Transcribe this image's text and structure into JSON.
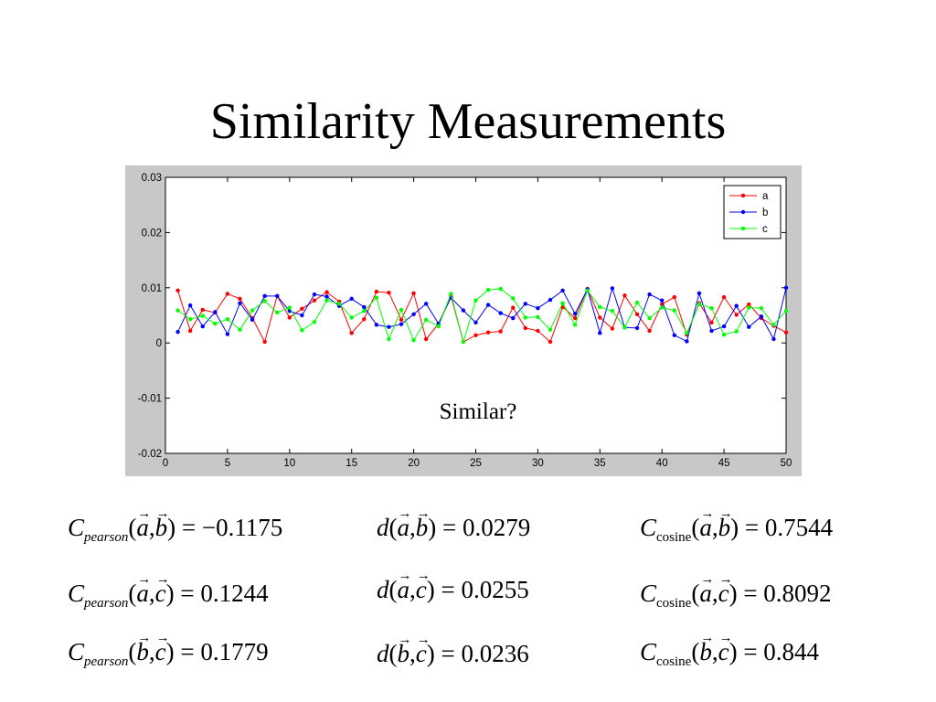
{
  "slide": {
    "title": "Similarity Measurements"
  },
  "chart_data": {
    "type": "line",
    "xlim": [
      0,
      50
    ],
    "ylim": [
      -0.02,
      0.03
    ],
    "xticks": [
      "0",
      "5",
      "10",
      "15",
      "20",
      "25",
      "30",
      "35",
      "40",
      "45",
      "50"
    ],
    "yticks": [
      "0.03",
      "0.02",
      "0.01",
      "0",
      "-0.01",
      "-0.02"
    ],
    "legend_position": "top-right",
    "grid": false,
    "annotation": "Similar?",
    "x": [
      1,
      2,
      3,
      4,
      5,
      6,
      7,
      8,
      9,
      10,
      11,
      12,
      13,
      14,
      15,
      16,
      17,
      18,
      19,
      20,
      21,
      22,
      23,
      24,
      25,
      26,
      27,
      28,
      29,
      30,
      31,
      32,
      33,
      34,
      35,
      36,
      37,
      38,
      39,
      40,
      41,
      42,
      43,
      44,
      45,
      46,
      47,
      48,
      49,
      50
    ],
    "series": [
      {
        "name": "a",
        "color": "#ff0000",
        "values": [
          0.0095,
          0.0022,
          0.006,
          0.0055,
          0.0089,
          0.008,
          0.0045,
          0.0002,
          0.0085,
          0.0046,
          0.0062,
          0.0077,
          0.0092,
          0.0075,
          0.0018,
          0.0043,
          0.0093,
          0.0091,
          0.0042,
          0.009,
          0.0007,
          0.0035,
          0.0085,
          0.0002,
          0.0014,
          0.0019,
          0.0021,
          0.0064,
          0.0027,
          0.0022,
          0.0002,
          0.0065,
          0.0045,
          0.0098,
          0.0046,
          0.0026,
          0.0086,
          0.0052,
          0.0022,
          0.007,
          0.0083,
          0.0015,
          0.0072,
          0.0037,
          0.0083,
          0.0051,
          0.007,
          0.0045,
          0.0031,
          0.0019
        ]
      },
      {
        "name": "b",
        "color": "#0000ff",
        "values": [
          0.002,
          0.0068,
          0.003,
          0.0056,
          0.0016,
          0.0072,
          0.0042,
          0.0085,
          0.0085,
          0.0058,
          0.005,
          0.0088,
          0.0084,
          0.0067,
          0.008,
          0.0065,
          0.0033,
          0.0029,
          0.0034,
          0.0052,
          0.0071,
          0.0035,
          0.0082,
          0.0059,
          0.0037,
          0.0069,
          0.0054,
          0.0045,
          0.0071,
          0.0063,
          0.0078,
          0.0095,
          0.0053,
          0.0097,
          0.0018,
          0.0099,
          0.0028,
          0.0027,
          0.0088,
          0.0077,
          0.0014,
          0.0003,
          0.009,
          0.0022,
          0.003,
          0.0067,
          0.0029,
          0.0048,
          0.0007,
          0.01
        ]
      },
      {
        "name": "c",
        "color": "#00ff00",
        "values": [
          0.0059,
          0.0043,
          0.0049,
          0.0035,
          0.0043,
          0.0024,
          0.0059,
          0.0076,
          0.0055,
          0.0064,
          0.0023,
          0.0038,
          0.0077,
          0.0071,
          0.0046,
          0.0058,
          0.0082,
          0.0007,
          0.006,
          0.0005,
          0.0042,
          0.003,
          0.0089,
          0.0002,
          0.0077,
          0.0096,
          0.0098,
          0.0081,
          0.0046,
          0.0047,
          0.0024,
          0.0072,
          0.0033,
          0.0095,
          0.0065,
          0.0058,
          0.0028,
          0.0073,
          0.0045,
          0.0064,
          0.0059,
          0.0018,
          0.007,
          0.0063,
          0.0015,
          0.0021,
          0.0064,
          0.0063,
          0.0033,
          0.0058
        ]
      }
    ]
  },
  "formulas": [
    {
      "pre": "C",
      "sub": "pearson",
      "args": [
        "a",
        "b"
      ],
      "value": " = −0.1175"
    },
    {
      "pre": "C",
      "sub": "pearson",
      "args": [
        "a",
        "c"
      ],
      "value": " = 0.1244"
    },
    {
      "pre": "C",
      "sub": "pearson",
      "args": [
        "b",
        "c"
      ],
      "value": " = 0.1779"
    },
    {
      "pre": "d",
      "sub": "",
      "args": [
        "a",
        "b"
      ],
      "value": " = 0.0279"
    },
    {
      "pre": "d",
      "sub": "",
      "args": [
        "a",
        "c"
      ],
      "value": " = 0.0255"
    },
    {
      "pre": "d",
      "sub": "",
      "args": [
        "b",
        "c"
      ],
      "value": " = 0.0236"
    },
    {
      "pre": "C",
      "sub": "cosine",
      "args": [
        "a",
        "b"
      ],
      "value": " = 0.7544"
    },
    {
      "pre": "C",
      "sub": "cosine",
      "args": [
        "a",
        "c"
      ],
      "value": " = 0.8092"
    },
    {
      "pre": "C",
      "sub": "cosine",
      "args": [
        "b",
        "c"
      ],
      "value": " = 0.844"
    }
  ]
}
